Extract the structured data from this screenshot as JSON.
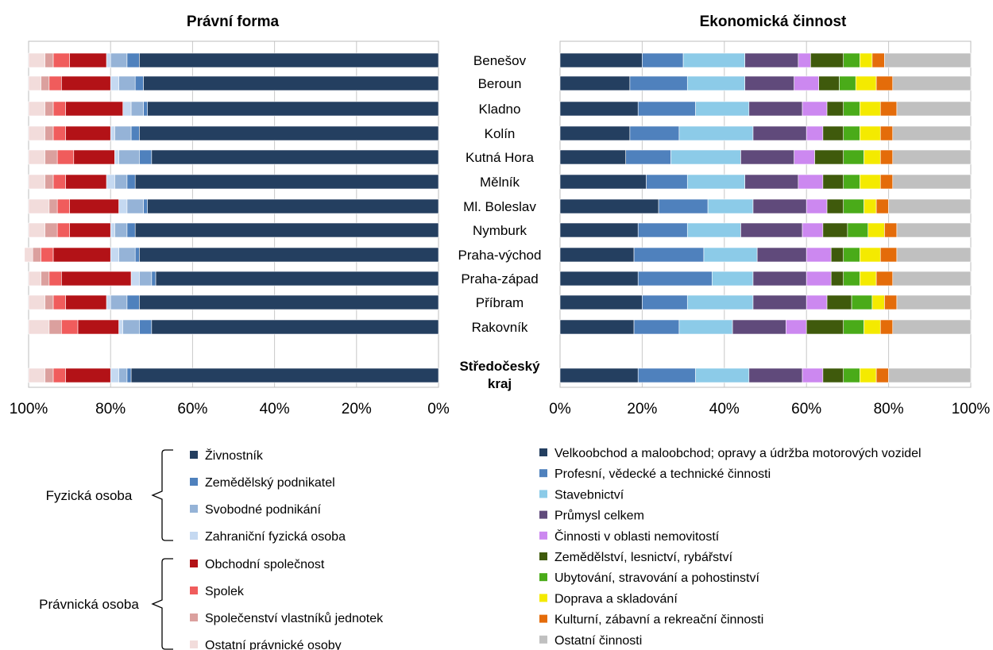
{
  "chart_data": [
    {
      "type": "bar",
      "orientation": "horizontal-stacked-100",
      "title": "Právní forma",
      "x_axis": "reversed",
      "xlim": [
        0,
        100
      ],
      "x_ticks": [
        "100%",
        "80%",
        "60%",
        "40%",
        "20%",
        "0%"
      ],
      "grid": true,
      "categories": [
        "Benešov",
        "Beroun",
        "Kladno",
        "Kolín",
        "Kutná Hora",
        "Mělník",
        "Ml. Boleslav",
        "Nymburk",
        "Praha-východ",
        "Praha-západ",
        "Příbram",
        "Rakovník",
        "",
        "Středočeský kraj"
      ],
      "series": [
        {
          "name": "Živnostník",
          "color": "#243f60",
          "values": [
            73,
            72,
            71,
            73,
            70,
            74,
            71,
            74,
            73,
            69,
            73,
            70,
            null,
            75
          ]
        },
        {
          "name": "Zemědělský podnikatel",
          "color": "#4f81bd",
          "values": [
            3,
            2,
            1,
            2,
            3,
            2,
            1,
            2,
            1,
            1,
            3,
            3,
            null,
            1
          ]
        },
        {
          "name": "Svobodné podnikání",
          "color": "#95b3d7",
          "values": [
            4,
            4,
            3,
            4,
            5,
            3,
            4,
            3,
            4,
            3,
            4,
            4,
            null,
            2
          ]
        },
        {
          "name": "Zahraniční fyzická osoba",
          "color": "#c5d9f1",
          "values": [
            1,
            2,
            2,
            1,
            1,
            2,
            2,
            1,
            2,
            2,
            1,
            1,
            null,
            2
          ]
        },
        {
          "name": "Obchodní společnost",
          "color": "#b31217",
          "values": [
            9,
            12,
            14,
            11,
            10,
            10,
            12,
            10,
            14,
            17,
            10,
            10,
            null,
            11
          ]
        },
        {
          "name": "Spolek",
          "color": "#f05c5c",
          "values": [
            4,
            3,
            3,
            3,
            4,
            3,
            3,
            3,
            3,
            3,
            3,
            4,
            null,
            3
          ]
        },
        {
          "name": "Společenství vlastníků jednotek",
          "color": "#dba09e",
          "values": [
            2,
            2,
            2,
            2,
            3,
            2,
            2,
            3,
            2,
            2,
            2,
            3,
            null,
            2
          ]
        },
        {
          "name": "Ostatní právnické osoby",
          "color": "#f2dcdb",
          "values": [
            4,
            3,
            4,
            4,
            4,
            4,
            5,
            4,
            2,
            3,
            4,
            5,
            null,
            4
          ]
        }
      ]
    },
    {
      "type": "bar",
      "orientation": "horizontal-stacked-100",
      "title": "Ekonomická činnost",
      "xlim": [
        0,
        100
      ],
      "x_ticks": [
        "0%",
        "20%",
        "40%",
        "60%",
        "80%",
        "100%"
      ],
      "grid": true,
      "categories": [
        "Benešov",
        "Beroun",
        "Kladno",
        "Kolín",
        "Kutná Hora",
        "Mělník",
        "Ml. Boleslav",
        "Nymburk",
        "Praha-východ",
        "Praha-západ",
        "Příbram",
        "Rakovník",
        "",
        "Středočeský kraj"
      ],
      "series": [
        {
          "name": "Velkoobchod a maloobchod; opravy a údržba motorových vozidel",
          "color": "#243f60",
          "values": [
            20,
            17,
            19,
            17,
            16,
            21,
            24,
            19,
            18,
            19,
            20,
            18,
            null,
            19
          ]
        },
        {
          "name": "Profesní, vědecké a technické činnosti",
          "color": "#4f81bd",
          "values": [
            10,
            14,
            14,
            12,
            11,
            10,
            12,
            12,
            17,
            18,
            11,
            11,
            null,
            14
          ]
        },
        {
          "name": "Stavebnictví",
          "color": "#8ccbe8",
          "values": [
            15,
            14,
            13,
            18,
            17,
            14,
            11,
            13,
            13,
            10,
            16,
            13,
            null,
            13
          ]
        },
        {
          "name": "Průmysl celkem",
          "color": "#604a7b",
          "values": [
            13,
            12,
            13,
            13,
            13,
            13,
            13,
            15,
            12,
            13,
            13,
            13,
            null,
            13
          ]
        },
        {
          "name": "Činnosti v oblasti nemovitostí",
          "color": "#cc88f0",
          "values": [
            3,
            6,
            6,
            4,
            5,
            6,
            5,
            5,
            6,
            6,
            5,
            5,
            null,
            5
          ]
        },
        {
          "name": "Zemědělství, lesnictví, rybářství",
          "color": "#3f5a0c",
          "values": [
            8,
            5,
            4,
            5,
            7,
            5,
            4,
            6,
            3,
            3,
            6,
            9,
            null,
            5
          ]
        },
        {
          "name": "Ubytování, stravování a pohostinství",
          "color": "#4aab19",
          "values": [
            4,
            4,
            4,
            4,
            5,
            4,
            5,
            5,
            4,
            4,
            5,
            5,
            null,
            4
          ]
        },
        {
          "name": "Doprava a skladování",
          "color": "#f4ea00",
          "values": [
            3,
            5,
            5,
            5,
            4,
            5,
            3,
            4,
            5,
            4,
            3,
            4,
            null,
            4
          ]
        },
        {
          "name": "Kulturní, zábavní a rekreační činnosti",
          "color": "#e46c0a",
          "values": [
            3,
            4,
            4,
            3,
            3,
            3,
            3,
            3,
            4,
            4,
            3,
            3,
            null,
            3
          ]
        },
        {
          "name": "Ostatní činnosti",
          "color": "#c0c0c0",
          "values": [
            21,
            19,
            18,
            19,
            19,
            19,
            20,
            18,
            18,
            19,
            18,
            19,
            null,
            20
          ]
        }
      ]
    }
  ],
  "category_labels": [
    "Benešov",
    "Beroun",
    "Kladno",
    "Kolín",
    "Kutná Hora",
    "Mělník",
    "Ml. Boleslav",
    "Nymburk",
    "Praha-východ",
    "Praha-západ",
    "Příbram",
    "Rakovník"
  ],
  "total_label_lines": [
    "Středočeský",
    "kraj"
  ],
  "legend_left": {
    "groups": [
      {
        "label": "Fyzická osoba",
        "items": [
          "Živnostník",
          "Zemědělský podnikatel",
          "Svobodné podnikání",
          "Zahraniční fyzická osoba"
        ]
      },
      {
        "label": "Právnická osoba",
        "items": [
          "Obchodní společnost",
          "Spolek",
          "Společenství vlastníků jednotek",
          "Ostatní právnické osoby"
        ]
      }
    ]
  },
  "legend_right": {
    "items": [
      "Velkoobchod a maloobchod; opravy a údržba motorových vozidel",
      "Profesní, vědecké a technické činnosti",
      "Stavebnictví",
      "Průmysl celkem",
      "Činnosti v oblasti nemovitostí",
      "Zemědělství, lesnictví, rybářství",
      "Ubytování, stravování a pohostinství",
      "Doprava a skladování",
      "Kulturní, zábavní a rekreační činnosti",
      "Ostatní činnosti"
    ]
  }
}
